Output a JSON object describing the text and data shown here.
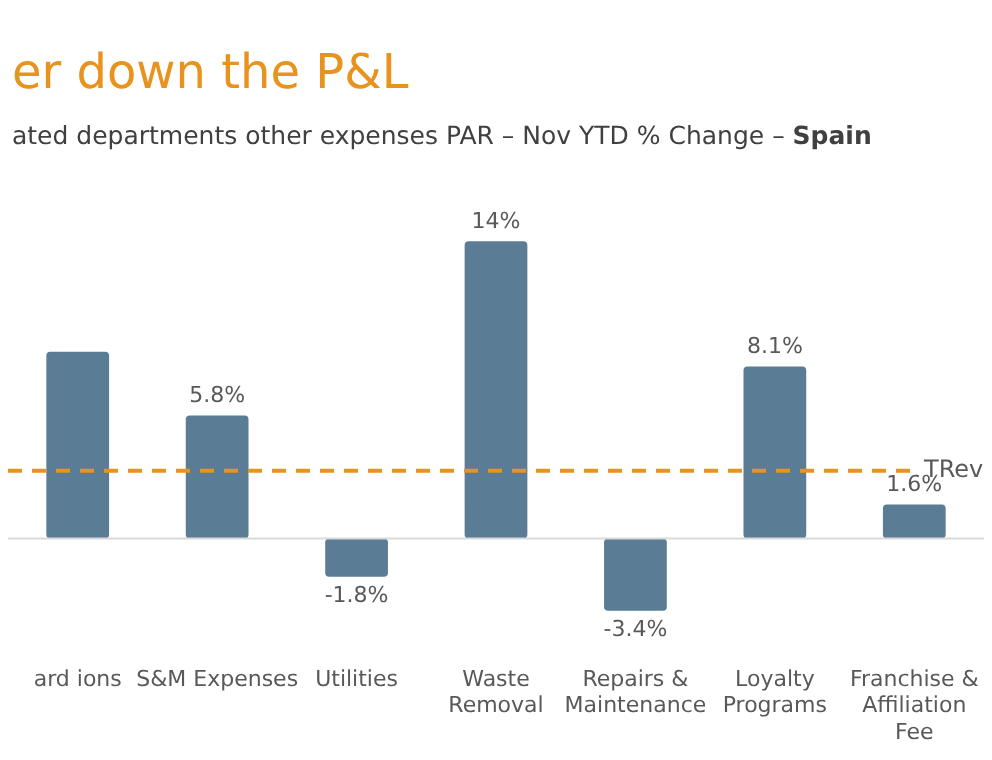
{
  "chart_data": {
    "type": "bar",
    "title": "er down the P&L",
    "subtitle": "ated departments other expenses PAR – Nov YTD % Change – Spain",
    "categories": [
      "ard ions",
      "S&M Expenses",
      "Utilities",
      "Waste Removal",
      "Repairs & Maintenance",
      "Loyalty Programs",
      "Franchise & Affiliation Fee"
    ],
    "values": [
      8.8,
      5.8,
      -1.8,
      14,
      -3.4,
      8.1,
      1.6
    ],
    "value_labels": [
      null,
      "5.8%",
      "-1.8%",
      "14%",
      "-3.4%",
      "8.1%",
      "1.6%"
    ],
    "color": "#5a7d95",
    "ref_lines": [
      {
        "axis": "y",
        "value": 3.2,
        "label": "TRev",
        "color": "#e8931e",
        "line_style": "dashed"
      }
    ]
  }
}
